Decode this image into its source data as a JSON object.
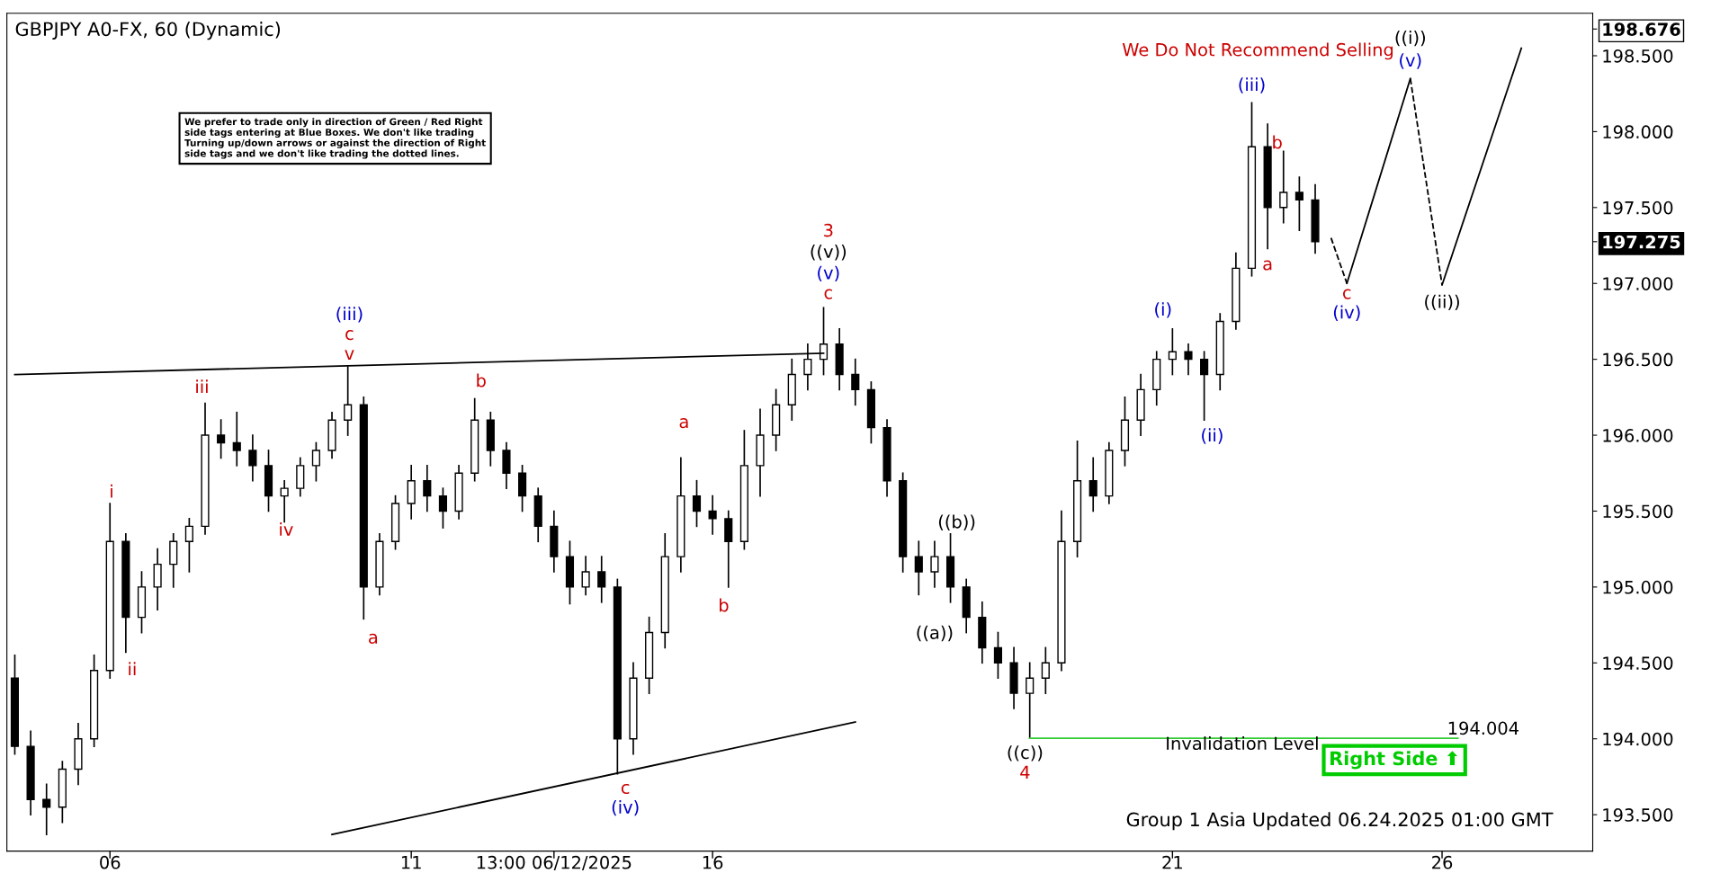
{
  "chart_data": {
    "type": "candlestick",
    "title": "GBPJPY A0-FX, 60 (Dynamic)",
    "categories": [
      null,
      null,
      null,
      null,
      null,
      null,
      "06",
      null,
      null,
      null,
      null,
      null,
      null,
      null,
      null,
      null,
      null,
      null,
      null,
      null,
      null,
      null,
      null,
      null,
      null,
      "11",
      null,
      null,
      null,
      null,
      null,
      null,
      null,
      null,
      "13:00 06/12/2025",
      null,
      null,
      null,
      null,
      null,
      null,
      null,
      null,
      null,
      "16",
      null,
      null,
      null,
      null,
      null,
      null,
      null,
      null,
      null,
      null,
      null,
      null,
      null,
      null,
      null,
      null,
      null,
      null,
      null,
      null,
      null,
      null,
      null,
      null,
      null,
      null,
      null,
      null,
      "21",
      null,
      null,
      null,
      null,
      null,
      null,
      null,
      null,
      null,
      null,
      null,
      null,
      null,
      null,
      null,
      null,
      "26",
      null,
      null,
      null,
      null,
      null,
      null,
      null,
      null,
      null
    ],
    "ohlc": [
      [
        194.4,
        194.55,
        193.9,
        193.95
      ],
      [
        193.95,
        194.05,
        193.5,
        193.6
      ],
      [
        193.6,
        193.7,
        193.37,
        193.55
      ],
      [
        193.55,
        193.85,
        193.45,
        193.8
      ],
      [
        193.8,
        194.1,
        193.7,
        194.0
      ],
      [
        194.0,
        194.55,
        193.95,
        194.45
      ],
      [
        194.45,
        195.55,
        194.4,
        195.3
      ],
      [
        195.3,
        195.35,
        194.57,
        194.8
      ],
      [
        194.8,
        195.1,
        194.7,
        195.0
      ],
      [
        195.0,
        195.25,
        194.85,
        195.15
      ],
      [
        195.15,
        195.35,
        195.0,
        195.3
      ],
      [
        195.3,
        195.45,
        195.1,
        195.4
      ],
      [
        195.4,
        196.21,
        195.35,
        196.0
      ],
      [
        196.0,
        196.1,
        195.85,
        195.95
      ],
      [
        195.95,
        196.15,
        195.8,
        195.9
      ],
      [
        195.9,
        196.0,
        195.7,
        195.8
      ],
      [
        195.8,
        195.9,
        195.5,
        195.6
      ],
      [
        195.6,
        195.7,
        195.43,
        195.65
      ],
      [
        195.65,
        195.85,
        195.6,
        195.8
      ],
      [
        195.8,
        195.95,
        195.7,
        195.9
      ],
      [
        195.9,
        196.15,
        195.85,
        196.1
      ],
      [
        196.1,
        196.45,
        196.0,
        196.2
      ],
      [
        196.2,
        196.25,
        194.79,
        195.0
      ],
      [
        195.0,
        195.35,
        194.95,
        195.3
      ],
      [
        195.3,
        195.6,
        195.25,
        195.55
      ],
      [
        195.55,
        195.8,
        195.45,
        195.7
      ],
      [
        195.7,
        195.8,
        195.5,
        195.6
      ],
      [
        195.6,
        195.65,
        195.39,
        195.5
      ],
      [
        195.5,
        195.8,
        195.45,
        195.75
      ],
      [
        195.75,
        196.24,
        195.7,
        196.1
      ],
      [
        196.1,
        196.15,
        195.8,
        195.9
      ],
      [
        195.9,
        195.95,
        195.65,
        195.75
      ],
      [
        195.75,
        195.8,
        195.5,
        195.6
      ],
      [
        195.6,
        195.65,
        195.3,
        195.4
      ],
      [
        195.4,
        195.5,
        195.1,
        195.2
      ],
      [
        195.2,
        195.3,
        194.89,
        195.0
      ],
      [
        195.0,
        195.2,
        194.95,
        195.1
      ],
      [
        195.1,
        195.2,
        194.9,
        195.0
      ],
      [
        195.0,
        195.05,
        193.77,
        194.0
      ],
      [
        194.0,
        194.5,
        193.9,
        194.4
      ],
      [
        194.4,
        194.8,
        194.3,
        194.7
      ],
      [
        194.7,
        195.35,
        194.6,
        195.2
      ],
      [
        195.2,
        195.85,
        195.1,
        195.6
      ],
      [
        195.6,
        195.7,
        195.4,
        195.5
      ],
      [
        195.5,
        195.6,
        195.35,
        195.45
      ],
      [
        195.45,
        195.5,
        195.0,
        195.3
      ],
      [
        195.3,
        196.03,
        195.25,
        195.8
      ],
      [
        195.8,
        196.17,
        195.6,
        196.0
      ],
      [
        196.0,
        196.3,
        195.9,
        196.2
      ],
      [
        196.2,
        196.5,
        196.1,
        196.4
      ],
      [
        196.4,
        196.6,
        196.3,
        196.5
      ],
      [
        196.5,
        196.84,
        196.4,
        196.6
      ],
      [
        196.6,
        196.7,
        196.3,
        196.4
      ],
      [
        196.4,
        196.5,
        196.2,
        196.3
      ],
      [
        196.3,
        196.35,
        195.95,
        196.05
      ],
      [
        196.05,
        196.1,
        195.6,
        195.7
      ],
      [
        195.7,
        195.75,
        195.1,
        195.2
      ],
      [
        195.2,
        195.3,
        194.95,
        195.1
      ],
      [
        195.1,
        195.3,
        195.0,
        195.2
      ],
      [
        195.2,
        195.35,
        194.9,
        195.0
      ],
      [
        195.0,
        195.05,
        194.7,
        194.8
      ],
      [
        194.8,
        194.9,
        194.5,
        194.6
      ],
      [
        194.6,
        194.7,
        194.4,
        194.5
      ],
      [
        194.5,
        194.6,
        194.2,
        194.3
      ],
      [
        194.3,
        194.5,
        194.004,
        194.4
      ],
      [
        194.4,
        194.6,
        194.3,
        194.5
      ],
      [
        194.5,
        195.5,
        194.45,
        195.3
      ],
      [
        195.3,
        195.96,
        195.2,
        195.7
      ],
      [
        195.7,
        195.85,
        195.5,
        195.6
      ],
      [
        195.6,
        195.95,
        195.55,
        195.9
      ],
      [
        195.9,
        196.25,
        195.8,
        196.1
      ],
      [
        196.1,
        196.4,
        196.0,
        196.3
      ],
      [
        196.3,
        196.55,
        196.2,
        196.5
      ],
      [
        196.5,
        196.7,
        196.4,
        196.55
      ],
      [
        196.55,
        196.6,
        196.4,
        196.5
      ],
      [
        196.5,
        196.55,
        196.1,
        196.4
      ],
      [
        196.4,
        196.8,
        196.3,
        196.75
      ],
      [
        196.75,
        197.2,
        196.7,
        197.1
      ],
      [
        197.1,
        198.19,
        197.05,
        197.9
      ],
      [
        197.9,
        198.05,
        197.23,
        197.5
      ],
      [
        197.5,
        197.87,
        197.4,
        197.6
      ],
      [
        197.6,
        197.7,
        197.35,
        197.55
      ],
      [
        197.55,
        197.65,
        197.2,
        197.275
      ],
      null,
      null,
      null,
      null,
      null,
      null,
      null,
      null,
      null,
      null,
      null,
      null,
      null,
      null,
      null,
      null,
      null
    ],
    "series": [
      {
        "type": "line",
        "color": "#000000",
        "line_style": "solid",
        "values": [
          196.4,
          null,
          null,
          null,
          null,
          null,
          null,
          null,
          null,
          null,
          null,
          null,
          null,
          null,
          null,
          null,
          null,
          null,
          null,
          null,
          null,
          null,
          null,
          null,
          null,
          null,
          null,
          null,
          null,
          null,
          null,
          null,
          null,
          null,
          null,
          null,
          null,
          null,
          null,
          null,
          null,
          null,
          null,
          null,
          null,
          null,
          null,
          null,
          null,
          null,
          null,
          196.54,
          null,
          null,
          null,
          null,
          null,
          null,
          null,
          null,
          null,
          null,
          null,
          null,
          null,
          null,
          null,
          null,
          null,
          null,
          null,
          null,
          null,
          null,
          null,
          null,
          null,
          null,
          null,
          null,
          null,
          null,
          null,
          null,
          null,
          null,
          null,
          null,
          null,
          null,
          null,
          null,
          null,
          null,
          null,
          null,
          null,
          null,
          null,
          null
        ]
      },
      {
        "type": "line",
        "color": "#000000",
        "line_style": "solid",
        "values": [
          null,
          null,
          null,
          null,
          null,
          null,
          null,
          null,
          null,
          null,
          null,
          null,
          null,
          null,
          null,
          null,
          null,
          null,
          null,
          null,
          193.37,
          null,
          null,
          null,
          null,
          null,
          null,
          null,
          null,
          null,
          null,
          null,
          null,
          null,
          null,
          null,
          null,
          null,
          null,
          null,
          null,
          null,
          null,
          null,
          null,
          null,
          null,
          null,
          null,
          null,
          null,
          null,
          null,
          194.11,
          null,
          null,
          null,
          null,
          null,
          null,
          null,
          null,
          null,
          null,
          null,
          null,
          null,
          null,
          null,
          null,
          null,
          null,
          null,
          null,
          null,
          null,
          null,
          null,
          null,
          null,
          null,
          null,
          null,
          null,
          null,
          null,
          null,
          null,
          null,
          null,
          null,
          null,
          null,
          null,
          null,
          null,
          null,
          null,
          null,
          null
        ]
      },
      {
        "type": "line",
        "color": "#33cc33",
        "line_style": "solid",
        "values": [
          null,
          null,
          null,
          null,
          null,
          null,
          null,
          null,
          null,
          null,
          null,
          null,
          null,
          null,
          null,
          null,
          null,
          null,
          null,
          null,
          null,
          null,
          null,
          null,
          null,
          null,
          null,
          null,
          null,
          null,
          null,
          null,
          null,
          null,
          null,
          null,
          null,
          null,
          null,
          null,
          null,
          null,
          null,
          null,
          null,
          null,
          null,
          null,
          null,
          null,
          null,
          null,
          null,
          null,
          null,
          null,
          null,
          null,
          null,
          null,
          null,
          null,
          null,
          null,
          194.004,
          null,
          null,
          null,
          null,
          null,
          null,
          null,
          null,
          null,
          null,
          null,
          null,
          null,
          null,
          null,
          null,
          null,
          null,
          null,
          null,
          null,
          null,
          null,
          null,
          null,
          null,
          194.004,
          null,
          null,
          null,
          null,
          null,
          null,
          null,
          null
        ]
      },
      {
        "type": "line",
        "color": "#000000",
        "line_style": "dashed",
        "values": [
          null,
          null,
          null,
          null,
          null,
          null,
          null,
          null,
          null,
          null,
          null,
          null,
          null,
          null,
          null,
          null,
          null,
          null,
          null,
          null,
          null,
          null,
          null,
          null,
          null,
          null,
          null,
          null,
          null,
          null,
          null,
          null,
          null,
          null,
          null,
          null,
          null,
          null,
          null,
          null,
          null,
          null,
          null,
          null,
          null,
          null,
          null,
          null,
          null,
          null,
          null,
          null,
          null,
          null,
          null,
          null,
          null,
          null,
          null,
          null,
          null,
          null,
          null,
          null,
          null,
          null,
          null,
          null,
          null,
          null,
          null,
          null,
          null,
          null,
          null,
          null,
          null,
          null,
          null,
          null,
          null,
          null,
          null,
          197.3,
          197.0,
          null,
          null,
          null,
          null,
          null,
          null,
          null,
          null,
          null,
          null,
          null,
          null,
          null,
          null,
          null
        ]
      },
      {
        "type": "line",
        "color": "#000000",
        "line_style": "solid",
        "values": [
          null,
          null,
          null,
          null,
          null,
          null,
          null,
          null,
          null,
          null,
          null,
          null,
          null,
          null,
          null,
          null,
          null,
          null,
          null,
          null,
          null,
          null,
          null,
          null,
          null,
          null,
          null,
          null,
          null,
          null,
          null,
          null,
          null,
          null,
          null,
          null,
          null,
          null,
          null,
          null,
          null,
          null,
          null,
          null,
          null,
          null,
          null,
          null,
          null,
          null,
          null,
          null,
          null,
          null,
          null,
          null,
          null,
          null,
          null,
          null,
          null,
          null,
          null,
          null,
          null,
          null,
          null,
          null,
          null,
          null,
          null,
          null,
          null,
          null,
          null,
          null,
          null,
          null,
          null,
          null,
          null,
          null,
          null,
          null,
          197.0,
          null,
          null,
          null,
          198.35,
          null,
          null,
          null,
          null,
          null,
          null,
          null,
          null,
          null,
          null,
          null
        ]
      },
      {
        "type": "line",
        "color": "#000000",
        "line_style": "dashed",
        "values": [
          null,
          null,
          null,
          null,
          null,
          null,
          null,
          null,
          null,
          null,
          null,
          null,
          null,
          null,
          null,
          null,
          null,
          null,
          null,
          null,
          null,
          null,
          null,
          null,
          null,
          null,
          null,
          null,
          null,
          null,
          null,
          null,
          null,
          null,
          null,
          null,
          null,
          null,
          null,
          null,
          null,
          null,
          null,
          null,
          null,
          null,
          null,
          null,
          null,
          null,
          null,
          null,
          null,
          null,
          null,
          null,
          null,
          null,
          null,
          null,
          null,
          null,
          null,
          null,
          null,
          null,
          null,
          null,
          null,
          null,
          null,
          null,
          null,
          null,
          null,
          null,
          null,
          null,
          null,
          null,
          null,
          null,
          null,
          null,
          null,
          null,
          null,
          null,
          198.35,
          null,
          196.99,
          null,
          null,
          null,
          null,
          null,
          null,
          null,
          null,
          null
        ]
      },
      {
        "type": "line",
        "color": "#000000",
        "line_style": "solid",
        "values": [
          null,
          null,
          null,
          null,
          null,
          null,
          null,
          null,
          null,
          null,
          null,
          null,
          null,
          null,
          null,
          null,
          null,
          null,
          null,
          null,
          null,
          null,
          null,
          null,
          null,
          null,
          null,
          null,
          null,
          null,
          null,
          null,
          null,
          null,
          null,
          null,
          null,
          null,
          null,
          null,
          null,
          null,
          null,
          null,
          null,
          null,
          null,
          null,
          null,
          null,
          null,
          null,
          null,
          null,
          null,
          null,
          null,
          null,
          null,
          null,
          null,
          null,
          null,
          null,
          null,
          null,
          null,
          null,
          null,
          null,
          null,
          null,
          null,
          null,
          null,
          null,
          null,
          null,
          null,
          null,
          null,
          null,
          null,
          null,
          null,
          null,
          null,
          null,
          null,
          null,
          196.99,
          null,
          null,
          null,
          null,
          198.55,
          null,
          null,
          null,
          null
        ]
      }
    ],
    "ylim": [
      193.26,
      198.78
    ],
    "yticks": [
      {
        "value": 193.5,
        "label": "193.500"
      },
      {
        "value": 194.0,
        "label": "194.000"
      },
      {
        "value": 194.5,
        "label": "194.500"
      },
      {
        "value": 195.0,
        "label": "195.000"
      },
      {
        "value": 195.5,
        "label": "195.500"
      },
      {
        "value": 196.0,
        "label": "196.000"
      },
      {
        "value": 196.5,
        "label": "196.500"
      },
      {
        "value": 197.0,
        "label": "197.000"
      },
      {
        "value": 197.5,
        "label": "197.500"
      },
      {
        "value": 198.0,
        "label": "198.000"
      },
      {
        "value": 198.5,
        "label": "198.500"
      },
      {
        "value": 197.275,
        "label": "197.275"
      },
      {
        "value": 198.676,
        "label": "198.676"
      }
    ],
    "annotations": [
      "We prefer to trade only in direction of Green / Red Right\nside tags entering at Blue Boxes. We don't like trading\nTurning up/down arrows or against the direction of Right\nside tags and we don't like trading the dotted lines.",
      "Group 1 Asia Updated 06.24.2025 01:00 GMT",
      "Right Side ⬆",
      "We Do Not Recommend Selling",
      "Invalidation Level",
      "194.004",
      "i",
      "ii",
      "iii",
      "iv",
      "v",
      "c",
      "(iii)",
      "a",
      "b",
      "c",
      "(iv)",
      "a",
      "b",
      "c",
      "(v)",
      "((v))",
      "3",
      "((a))",
      "((b))",
      "((c))",
      "4",
      "(i)",
      "(ii)",
      "(iii)",
      "a",
      "b",
      "c",
      "(iv)",
      "(v)",
      "((i))",
      "((ii))"
    ]
  }
}
